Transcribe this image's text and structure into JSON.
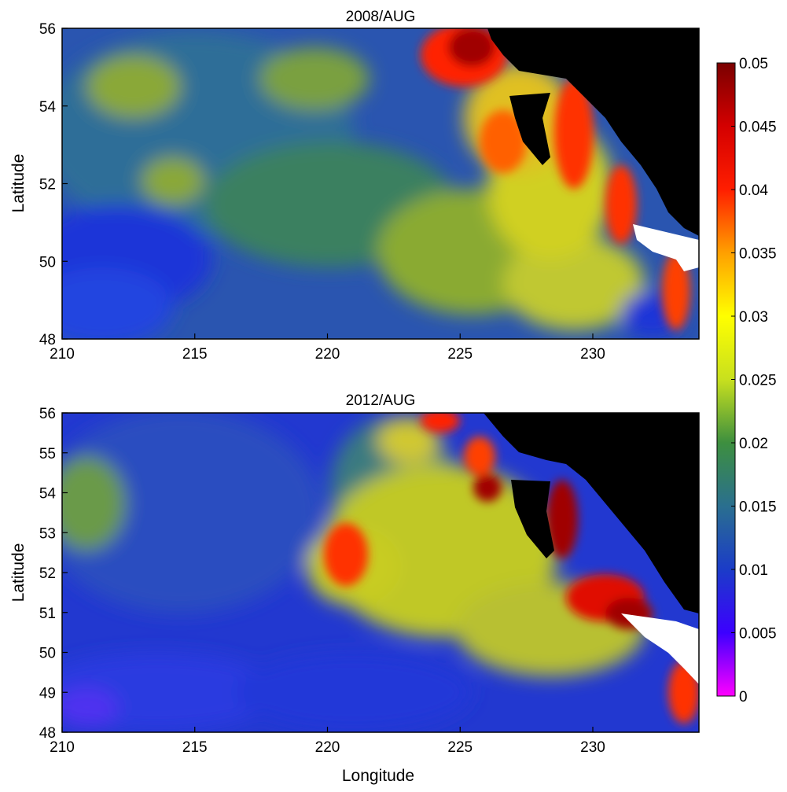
{
  "chart_data": [
    {
      "type": "heatmap",
      "title": "2008/AUG",
      "xlabel": "",
      "ylabel": "Latitude",
      "xlim": [
        210,
        234
      ],
      "ylim": [
        48,
        56
      ],
      "x_ticks": [
        "210",
        "215",
        "220",
        "225",
        "230"
      ],
      "y_ticks": [
        "48",
        "50",
        "52",
        "54",
        "56"
      ],
      "land_color": "#000000",
      "missing_color": "#ffffff"
    },
    {
      "type": "heatmap",
      "title": "2012/AUG",
      "xlabel": "Longitude",
      "ylabel": "Latitude",
      "xlim": [
        210,
        234
      ],
      "ylim": [
        48,
        56
      ],
      "x_ticks": [
        "210",
        "215",
        "220",
        "225",
        "230"
      ],
      "y_ticks": [
        "48",
        "49",
        "50",
        "51",
        "52",
        "53",
        "54",
        "55",
        "56"
      ],
      "land_color": "#000000",
      "missing_color": "#ffffff"
    }
  ],
  "colorbar": {
    "range": [
      0,
      0.05
    ],
    "ticks": [
      "0",
      "0.005",
      "0.01",
      "0.015",
      "0.02",
      "0.025",
      "0.03",
      "0.035",
      "0.04",
      "0.045",
      "0.05"
    ],
    "colors": [
      "#ff00ff",
      "#0000ff",
      "#2a6f8f",
      "#3d8f3f",
      "#ffff00",
      "#ff0000",
      "#7a0000"
    ]
  }
}
